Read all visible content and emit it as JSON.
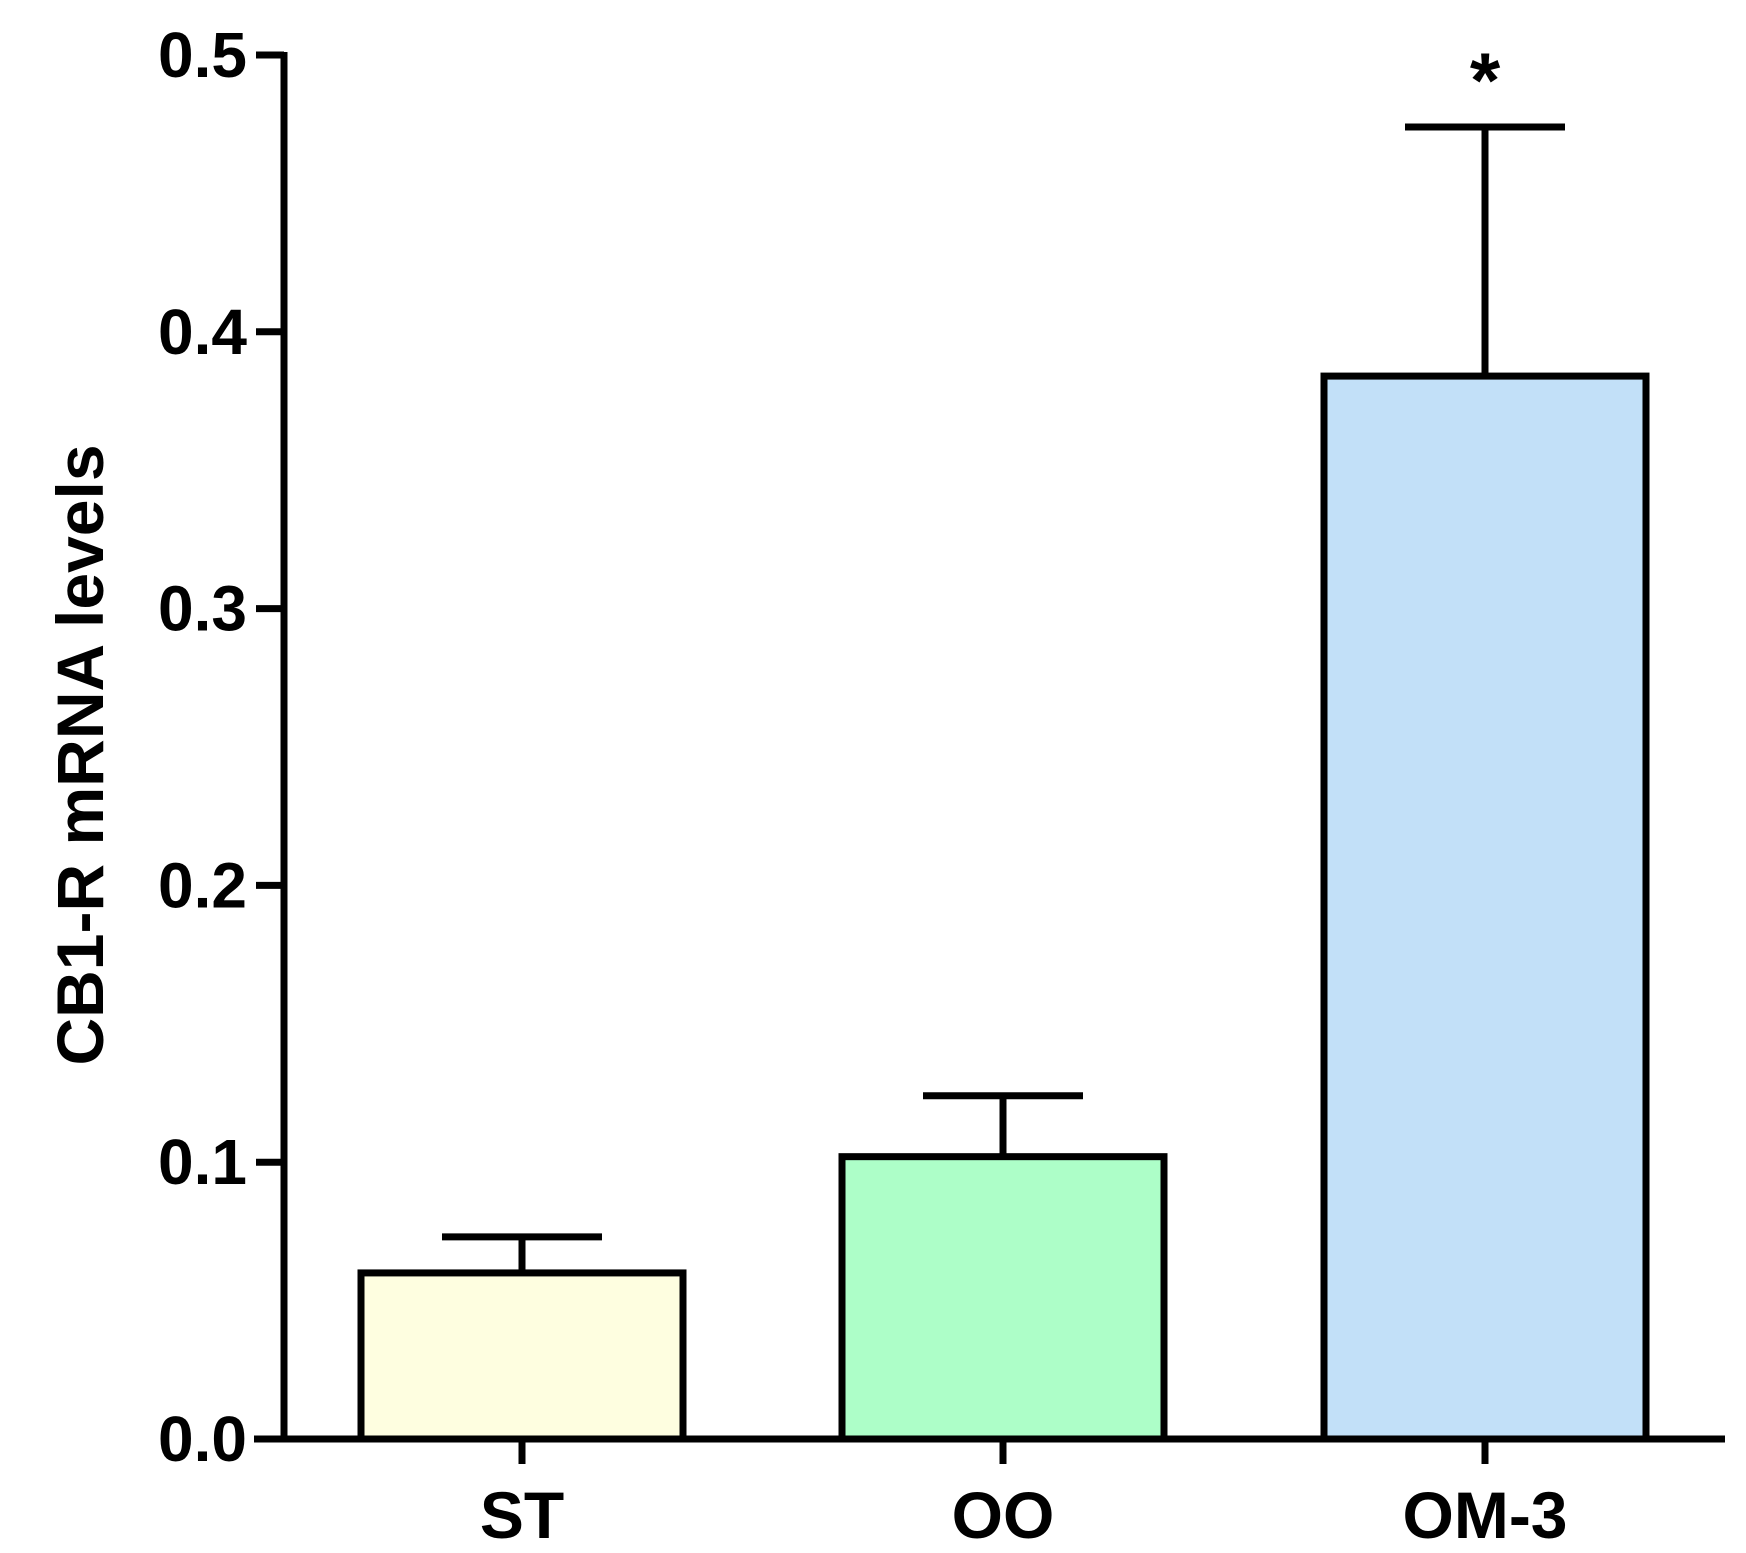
{
  "chart_data": {
    "type": "bar",
    "ylabel": "CB1-R mRNA levels",
    "xlabel": "",
    "categories": [
      "ST",
      "OO",
      "OM-3"
    ],
    "values": [
      0.06,
      0.102,
      0.384
    ],
    "errors": [
      0.013,
      0.022,
      0.09
    ],
    "colors": [
      "#fefee0",
      "#adfec8",
      "#c2e0f8"
    ],
    "annotations": [
      "",
      "",
      "*"
    ],
    "ylim": [
      0,
      0.5
    ],
    "yticks": [
      "0.0",
      "0.1",
      "0.2",
      "0.3",
      "0.4",
      "0.5"
    ],
    "grid": false
  }
}
